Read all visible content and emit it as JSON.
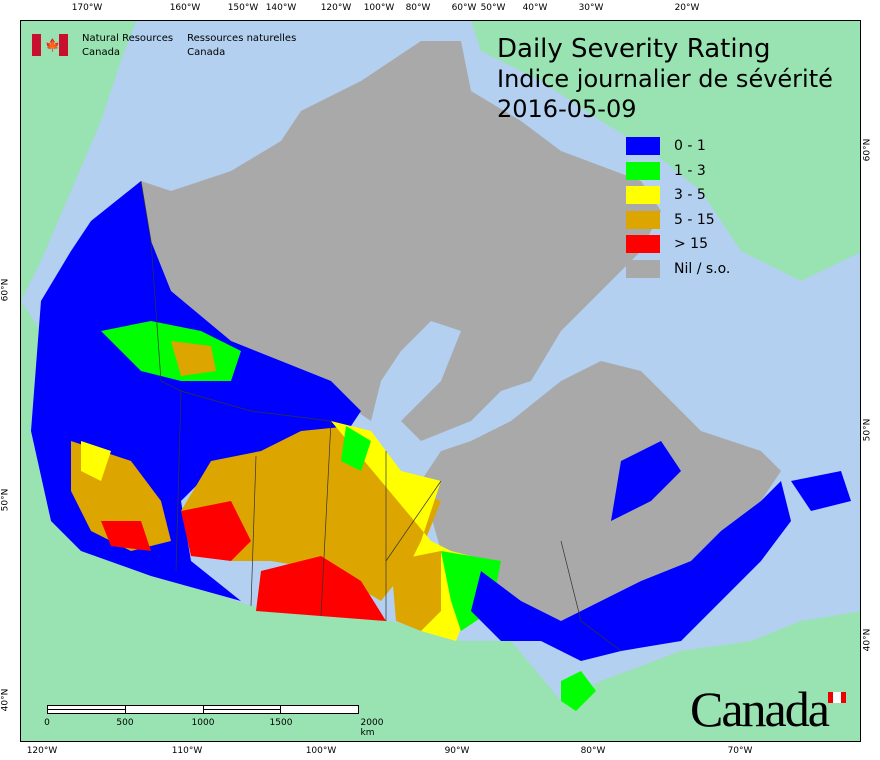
{
  "title": {
    "en": "Daily Severity Rating",
    "fr": "Indice journalier de sévérité",
    "date": "2016-05-09"
  },
  "agency": {
    "en_line1": "Natural Resources",
    "en_line2": "Canada",
    "fr_line1": "Ressources naturelles",
    "fr_line2": "Canada"
  },
  "wordmark": "Canada",
  "legend": [
    {
      "label": "0 - 1",
      "color": "#0000ff"
    },
    {
      "label": "1 - 3",
      "color": "#00ff00"
    },
    {
      "label": "3 - 5",
      "color": "#ffff00"
    },
    {
      "label": "5 - 15",
      "color": "#dca500"
    },
    {
      "label": "> 15",
      "color": "#ff0000"
    },
    {
      "label": "Nil / s.o.",
      "color": "#a9a9a9"
    }
  ],
  "axes": {
    "top": [
      "170°W",
      "160°W",
      "150°W",
      "140°W",
      "120°W",
      "100°W",
      "80°W",
      "60°W",
      "50°W",
      "40°W",
      "30°W",
      "20°W"
    ],
    "bottom": [
      "120°W",
      "110°W",
      "100°W",
      "90°W",
      "80°W",
      "70°W"
    ],
    "left": [
      "60°N",
      "50°N",
      "40°N"
    ],
    "right": [
      "60°N",
      "50°N",
      "40°N"
    ]
  },
  "scale_bar": {
    "labels": [
      "0",
      "500",
      "1000",
      "1500",
      "2000 km"
    ]
  },
  "colors": {
    "ocean": "#b3d0f0",
    "land": "#98e3b1",
    "no_data": "#a9a9a9"
  }
}
